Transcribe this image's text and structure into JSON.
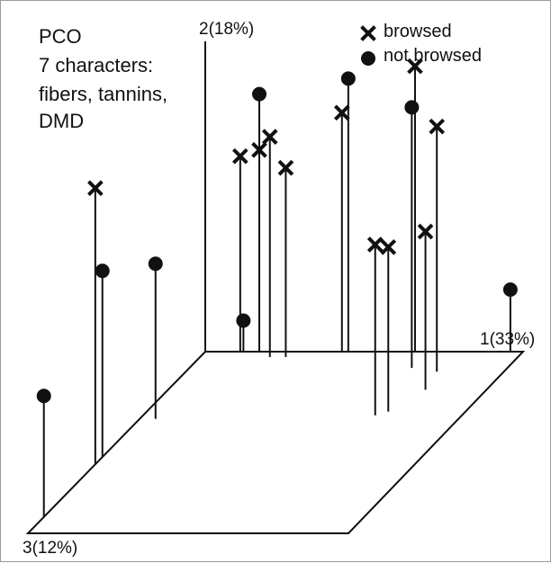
{
  "chart_data": {
    "type": "scatter",
    "title_lines": [
      "PCO",
      "7 characters:",
      "fibers, tannins,",
      "DMD"
    ],
    "axes": {
      "x_label": "1(33%)",
      "y_label": "2(18%)",
      "z_label": "3(12%)",
      "x_range": [
        0,
        1
      ],
      "y_range": [
        0,
        1
      ],
      "z_range": [
        0,
        1
      ]
    },
    "legend_placement": "top-right",
    "series": [
      {
        "name": "browsed",
        "marker": "x",
        "color": "#111111",
        "points": [
          {
            "x": 0.27,
            "y": 0.61,
            "z": 0.03
          },
          {
            "x": 0.22,
            "y": 0.71,
            "z": 0.03
          },
          {
            "x": 0.17,
            "y": 0.65,
            "z": 0.0
          },
          {
            "x": 0.0,
            "y": 0.89,
            "z": 0.62
          },
          {
            "x": 0.11,
            "y": 0.63,
            "z": 0.0
          },
          {
            "x": 0.43,
            "y": 0.77,
            "z": 0.0
          },
          {
            "x": 0.66,
            "y": 0.92,
            "z": 0.0
          },
          {
            "x": 0.79,
            "y": 0.79,
            "z": 0.11
          },
          {
            "x": 0.76,
            "y": 0.53,
            "z": 0.33
          },
          {
            "x": 0.73,
            "y": 0.55,
            "z": 0.35
          },
          {
            "x": 0.81,
            "y": 0.51,
            "z": 0.21
          }
        ]
      },
      {
        "name": "not browsed",
        "marker": "circle",
        "color": "#111111",
        "points": [
          {
            "x": 0.05,
            "y": 0.5,
            "z": 0.37
          },
          {
            "x": 0.0,
            "y": 0.6,
            "z": 0.58
          },
          {
            "x": 0.0,
            "y": 0.39,
            "z": 0.91
          },
          {
            "x": 0.17,
            "y": 0.83,
            "z": 0.0
          },
          {
            "x": 0.12,
            "y": 0.1,
            "z": 0.0
          },
          {
            "x": 0.45,
            "y": 0.88,
            "z": 0.0
          },
          {
            "x": 0.7,
            "y": 0.84,
            "z": 0.09
          },
          {
            "x": 0.96,
            "y": 0.2,
            "z": 0.0
          }
        ]
      }
    ],
    "grid": false
  }
}
